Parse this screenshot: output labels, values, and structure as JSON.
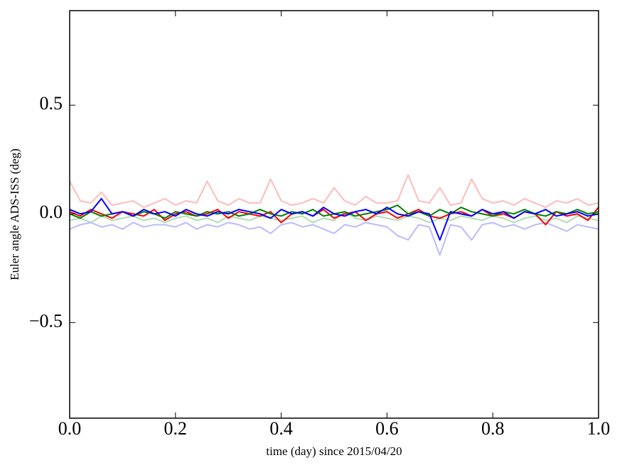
{
  "chart_data": {
    "type": "line",
    "xlabel": "time (day) since 2015/04/20",
    "ylabel": "Euler angle ADS-ISS (deg)",
    "xlim": [
      0,
      1
    ],
    "ylim": [
      -0.94,
      0.935
    ],
    "xticks": [
      {
        "value": 0,
        "label": "0.0"
      },
      0.2,
      0.4,
      0.6,
      0.8,
      {
        "value": 1,
        "label": "1.0"
      }
    ],
    "yticks": [
      {
        "value": -0.5,
        "label": "−0.5"
      },
      {
        "value": 0,
        "label": "0.0"
      },
      0.5
    ],
    "grid": false,
    "x": [
      0,
      0.02,
      0.04,
      0.06,
      0.08,
      0.1,
      0.12,
      0.14,
      0.16,
      0.18,
      0.2,
      0.22,
      0.24,
      0.26,
      0.28,
      0.3,
      0.32,
      0.34,
      0.36,
      0.38,
      0.4,
      0.42,
      0.44,
      0.46,
      0.48,
      0.5,
      0.52,
      0.54,
      0.56,
      0.58,
      0.6,
      0.62,
      0.64,
      0.66,
      0.68,
      0.7,
      0.72,
      0.74,
      0.76,
      0.78,
      0.8,
      0.82,
      0.84,
      0.86,
      0.88,
      0.9,
      0.92,
      0.94,
      0.96,
      0.98,
      1
    ],
    "series": [
      {
        "color": "#ffbbbb",
        "values": [
          0.15,
          0.06,
          0.05,
          0.1,
          0.04,
          0.05,
          0.06,
          0.03,
          0.05,
          0.07,
          0.04,
          0.06,
          0.05,
          0.15,
          0.06,
          0.04,
          0.07,
          0.05,
          0.05,
          0.16,
          0.06,
          0.04,
          0.05,
          0.07,
          0.05,
          0.12,
          0.06,
          0.04,
          0.08,
          0.05,
          0.05,
          0.06,
          0.18,
          0.06,
          0.05,
          0.12,
          0.04,
          0.05,
          0.16,
          0.07,
          0.05,
          0.06,
          0.04,
          0.07,
          0.05,
          0.03,
          0.06,
          0.05,
          0.07,
          0.04,
          0.05
        ]
      },
      {
        "color": "#b2dcb2",
        "values": [
          -0.03,
          -0.02,
          -0.04,
          -0.01,
          -0.03,
          -0.02,
          -0.01,
          -0.03,
          -0.02,
          -0.04,
          -0.02,
          -0.01,
          -0.03,
          -0.02,
          -0.04,
          -0.01,
          -0.02,
          -0.03,
          -0.01,
          -0.02,
          -0.03,
          -0.02,
          -0.01,
          -0.04,
          -0.02,
          -0.03,
          0.01,
          -0.02,
          -0.03,
          -0.01,
          -0.02,
          -0.03,
          -0.01,
          -0.02,
          -0.04,
          -0.02,
          -0.03,
          -0.01,
          -0.02,
          -0.03,
          -0.01,
          -0.02,
          -0.04,
          -0.02,
          -0.01,
          -0.03,
          -0.02,
          -0.04,
          -0.01,
          -0.02,
          -0.03
        ]
      },
      {
        "color": "#bbbbff",
        "values": [
          -0.07,
          -0.05,
          -0.04,
          -0.06,
          -0.05,
          -0.07,
          -0.04,
          -0.06,
          -0.05,
          -0.05,
          -0.06,
          -0.04,
          -0.07,
          -0.05,
          -0.06,
          -0.04,
          -0.05,
          -0.07,
          -0.06,
          -0.09,
          -0.05,
          -0.04,
          -0.06,
          -0.05,
          -0.07,
          -0.09,
          -0.05,
          -0.06,
          -0.04,
          -0.05,
          -0.06,
          -0.1,
          -0.12,
          -0.05,
          -0.06,
          -0.19,
          -0.05,
          -0.06,
          -0.12,
          -0.05,
          -0.04,
          -0.06,
          -0.05,
          -0.07,
          -0.05,
          -0.04,
          -0.06,
          -0.08,
          -0.05,
          -0.06,
          -0.07
        ]
      },
      {
        "color": "#ff0000",
        "values": [
          0.01,
          -0.01,
          0.02,
          0,
          -0.02,
          0.01,
          0,
          -0.01,
          0.02,
          -0.03,
          0,
          0.01,
          -0.01,
          0,
          0.02,
          -0.02,
          0.01,
          0,
          -0.01,
          0.01,
          -0.04,
          0,
          0.01,
          -0.01,
          0.02,
          -0.02,
          0,
          0.01,
          -0.03,
          0,
          0.01,
          -0.02,
          0,
          0.02,
          -0.01,
          -0.02,
          0,
          0.01,
          -0.01,
          0.02,
          -0.01,
          0,
          -0.02,
          0.01,
          0,
          -0.05,
          0.01,
          -0.01,
          0,
          -0.03,
          0.03
        ]
      },
      {
        "color": "#008000",
        "values": [
          0,
          -0.02,
          0.01,
          -0.01,
          0,
          0.01,
          -0.01,
          0.01,
          0,
          -0.02,
          0.01,
          0,
          -0.01,
          0.01,
          0,
          0.01,
          -0.01,
          0,
          0.02,
          0,
          -0.01,
          0.01,
          0,
          0.02,
          -0.01,
          0,
          0.01,
          -0.01,
          0,
          0.01,
          0.02,
          0.04,
          0,
          0.01,
          -0.01,
          0.02,
          0,
          0.03,
          0.01,
          0,
          -0.01,
          0.01,
          0,
          0.02,
          0,
          -0.01,
          0.01,
          0,
          0.02,
          0,
          0.01
        ]
      },
      {
        "color": "#0000ff",
        "values": [
          0.02,
          0,
          0.01,
          0.07,
          0,
          0.01,
          -0.01,
          0.02,
          0,
          0.01,
          -0.01,
          0.02,
          0,
          -0.01,
          0.01,
          0,
          0.02,
          0.01,
          0,
          -0.02,
          0.02,
          0,
          0.01,
          -0.01,
          0.03,
          0,
          -0.01,
          0.01,
          0.02,
          0,
          0.03,
          0,
          -0.01,
          0.01,
          0,
          -0.12,
          0.01,
          0,
          -0.01,
          0.02,
          0,
          0.01,
          -0.02,
          0.01,
          0,
          0.02,
          -0.01,
          0,
          0.01,
          -0.01,
          0
        ]
      }
    ]
  }
}
